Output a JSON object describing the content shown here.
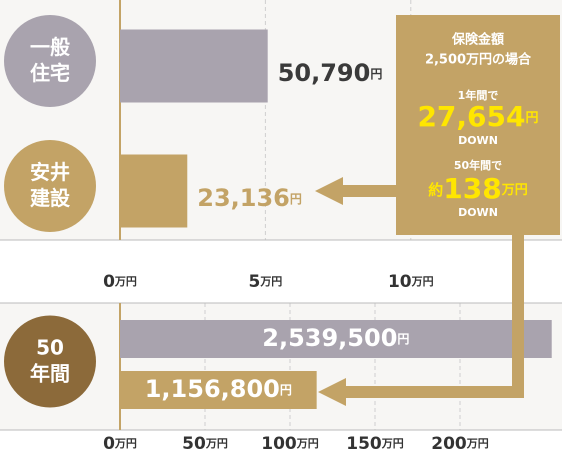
{
  "chart_data": [
    {
      "type": "bar",
      "orientation": "horizontal",
      "categories": [
        "一般住宅",
        "安井建設"
      ],
      "values": [
        50790,
        23136
      ],
      "value_labels": [
        "50,790円",
        "23,136円"
      ],
      "colors": [
        "#a9a3ae",
        "#c3a366"
      ],
      "label_colors": [
        "#3a3a3a",
        "#c3a366"
      ],
      "circle_colors": [
        "#a9a3ae",
        "#c3a366"
      ],
      "xlim": [
        0,
        152000
      ],
      "xticks": [
        {
          "value": 0,
          "label": "0万円"
        },
        {
          "value": 50000,
          "label": "5万円"
        },
        {
          "value": 100000,
          "label": "10万円"
        }
      ],
      "grid": true
    },
    {
      "type": "bar",
      "orientation": "horizontal",
      "categories": [
        "50年間"
      ],
      "circle_colors": [
        "#8c6a3a"
      ],
      "series": [
        {
          "color": "#a9a3ae",
          "values": [
            2539500
          ],
          "value_labels": [
            "2,539,500円"
          ]
        },
        {
          "color": "#c3a366",
          "values": [
            1156800
          ],
          "value_labels": [
            "1,156,800円"
          ]
        }
      ],
      "xlim": [
        0,
        2600000
      ],
      "xticks": [
        {
          "value": 0,
          "label": "0万円"
        },
        {
          "value": 500000,
          "label": "50万円"
        },
        {
          "value": 1000000,
          "label": "100万円"
        },
        {
          "value": 1500000,
          "label": "150万円"
        },
        {
          "value": 2000000,
          "label": "200万円"
        }
      ],
      "grid": true
    }
  ],
  "callout": {
    "title": [
      "保険金額",
      "2,500万円の場合"
    ],
    "yearly": {
      "label": "1年間で",
      "amount": "27,654",
      "unit": "円",
      "note": "DOWN"
    },
    "total": {
      "label": "50年間で",
      "prefix": "約",
      "amount": "138",
      "unit": "万円",
      "note": "DOWN"
    }
  }
}
